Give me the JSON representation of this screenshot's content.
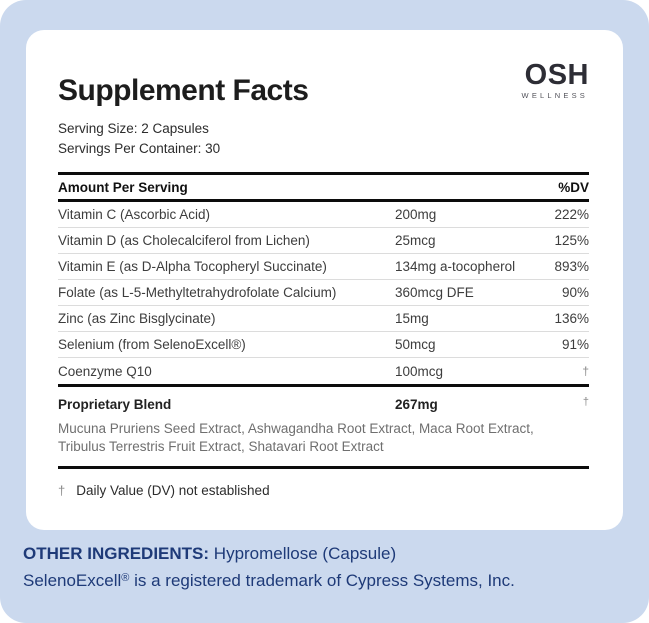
{
  "brand": {
    "name": "OSH",
    "tagline": "WELLNESS"
  },
  "panel": {
    "title": "Supplement Facts",
    "serving_size": "Serving Size: 2 Capsules",
    "servings_per_container": "Servings Per Container: 30",
    "header": {
      "amount_label": "Amount Per Serving",
      "dv_label": "%DV"
    },
    "rows": [
      {
        "name": "Vitamin C (Ascorbic Acid)",
        "amount": "200mg",
        "dv": "222%"
      },
      {
        "name": "Vitamin D (as Cholecalciferol from Lichen)",
        "amount": "25mcg",
        "dv": "125%"
      },
      {
        "name": "Vitamin E (as D-Alpha Tocopheryl Succinate)",
        "amount": "134mg a-tocopherol",
        "dv": "893%"
      },
      {
        "name": "Folate (as L-5-Methyltetrahydrofolate Calcium)",
        "amount": "360mcg DFE",
        "dv": "90%"
      },
      {
        "name": "Zinc (as Zinc Bisglycinate)",
        "amount": "15mg",
        "dv": "136%"
      },
      {
        "name": "Selenium (from SelenoExcell®)",
        "amount": "50mcg",
        "dv": "91%"
      },
      {
        "name": "Coenzyme Q10",
        "amount": "100mcg",
        "dv": "†"
      }
    ],
    "blend": {
      "name": "Proprietary Blend",
      "amount": "267mg",
      "dv": "†",
      "ingredients": "Mucuna Pruriens Seed Extract, Ashwagandha Root Extract, Maca Root Extract, Tribulus Terrestris Fruit Extract, Shatavari Root Extract"
    },
    "footnote": {
      "symbol": "†",
      "text": "Daily Value (DV) not established"
    }
  },
  "footer": {
    "other_ingredients_label": "OTHER INGREDIENTS:",
    "other_ingredients_value": " Hypromellose (Capsule)",
    "trademark_pre": "SelenoExcell",
    "trademark_symbol": "®",
    "trademark_post": " is a registered trademark of Cypress Systems, Inc."
  },
  "colors": {
    "background_blue": "#cbd9ee",
    "card_white": "#ffffff",
    "accent_navy": "#1e3a78",
    "rule_black": "#0c0c0c",
    "divider_gray": "#dcdcdc",
    "muted_gray": "#6f6f6f"
  }
}
